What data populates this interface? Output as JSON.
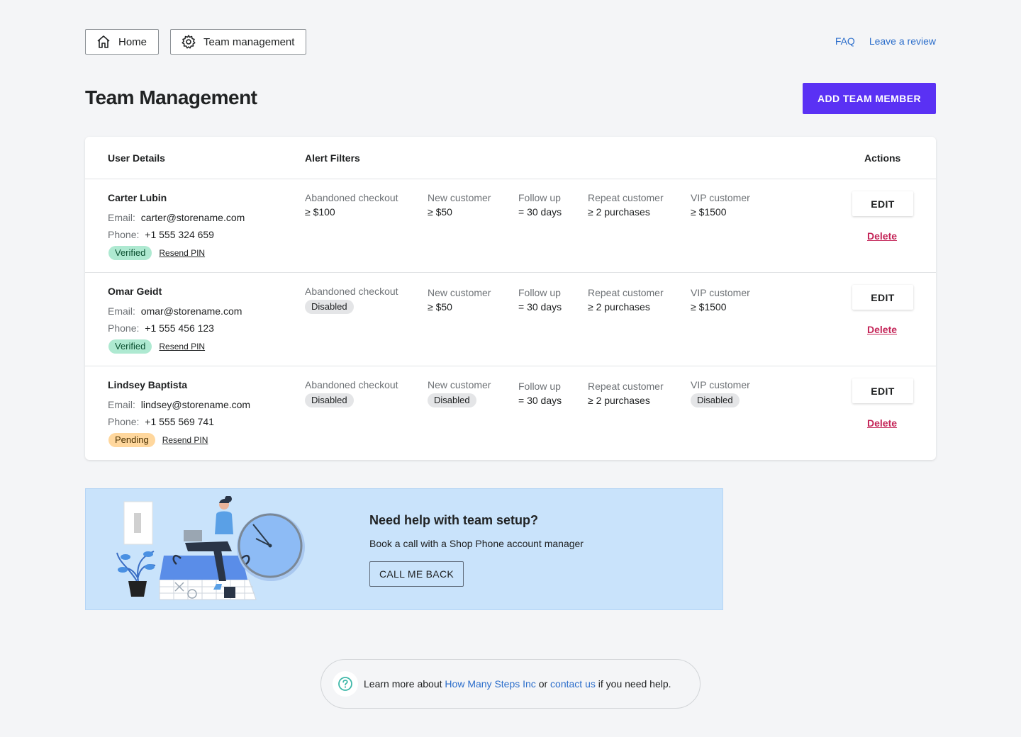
{
  "nav": {
    "home_label": "Home",
    "team_label": "Team management",
    "faq_label": "FAQ",
    "review_label": "Leave a review"
  },
  "page": {
    "title": "Team Management",
    "add_button": "ADD TEAM MEMBER"
  },
  "table": {
    "headers": {
      "user": "User Details",
      "alerts": "Alert Filters",
      "actions": "Actions"
    },
    "email_label": "Email:",
    "phone_label": "Phone:",
    "resend_label": "Resend PIN",
    "edit_label": "EDIT",
    "delete_label": "Delete",
    "filter_titles": [
      "Abandoned checkout",
      "New customer",
      "Follow up",
      "Repeat customer",
      "VIP customer"
    ],
    "rows": [
      {
        "name": "Carter Lubin",
        "email": "carter@storename.com",
        "phone": "+1 555 324 659",
        "status": "Verified",
        "filters": [
          "≥ $100",
          "≥ $50",
          "= 30 days",
          "≥ 2 purchases",
          "≥ $1500"
        ]
      },
      {
        "name": "Omar Geidt",
        "email": "omar@storename.com",
        "phone": "+1 555 456 123",
        "status": "Verified",
        "filters": [
          "Disabled",
          "≥ $50",
          "= 30 days",
          "≥ 2 purchases",
          "≥ $1500"
        ]
      },
      {
        "name": "Lindsey Baptista",
        "email": "lindsey@storename.com",
        "phone": "+1 555 569 741",
        "status": "Pending",
        "filters": [
          "Disabled",
          "Disabled",
          "= 30 days",
          "≥ 2 purchases",
          "Disabled"
        ]
      }
    ]
  },
  "help": {
    "title": "Need help with team setup?",
    "subtitle": "Book a call with a Shop Phone account manager",
    "button": "CALL ME BACK"
  },
  "footer": {
    "prefix": "Learn more about",
    "link1": "How Many Steps Inc",
    "middle": "or",
    "link2": "contact us",
    "suffix": "if you need help."
  },
  "colors": {
    "primary": "#5a31f4",
    "link": "#2c6ecb",
    "danger": "#c42558",
    "verified_bg": "#aee9d1",
    "pending_bg": "#ffd79d",
    "help_bg": "#c9e3fb"
  }
}
